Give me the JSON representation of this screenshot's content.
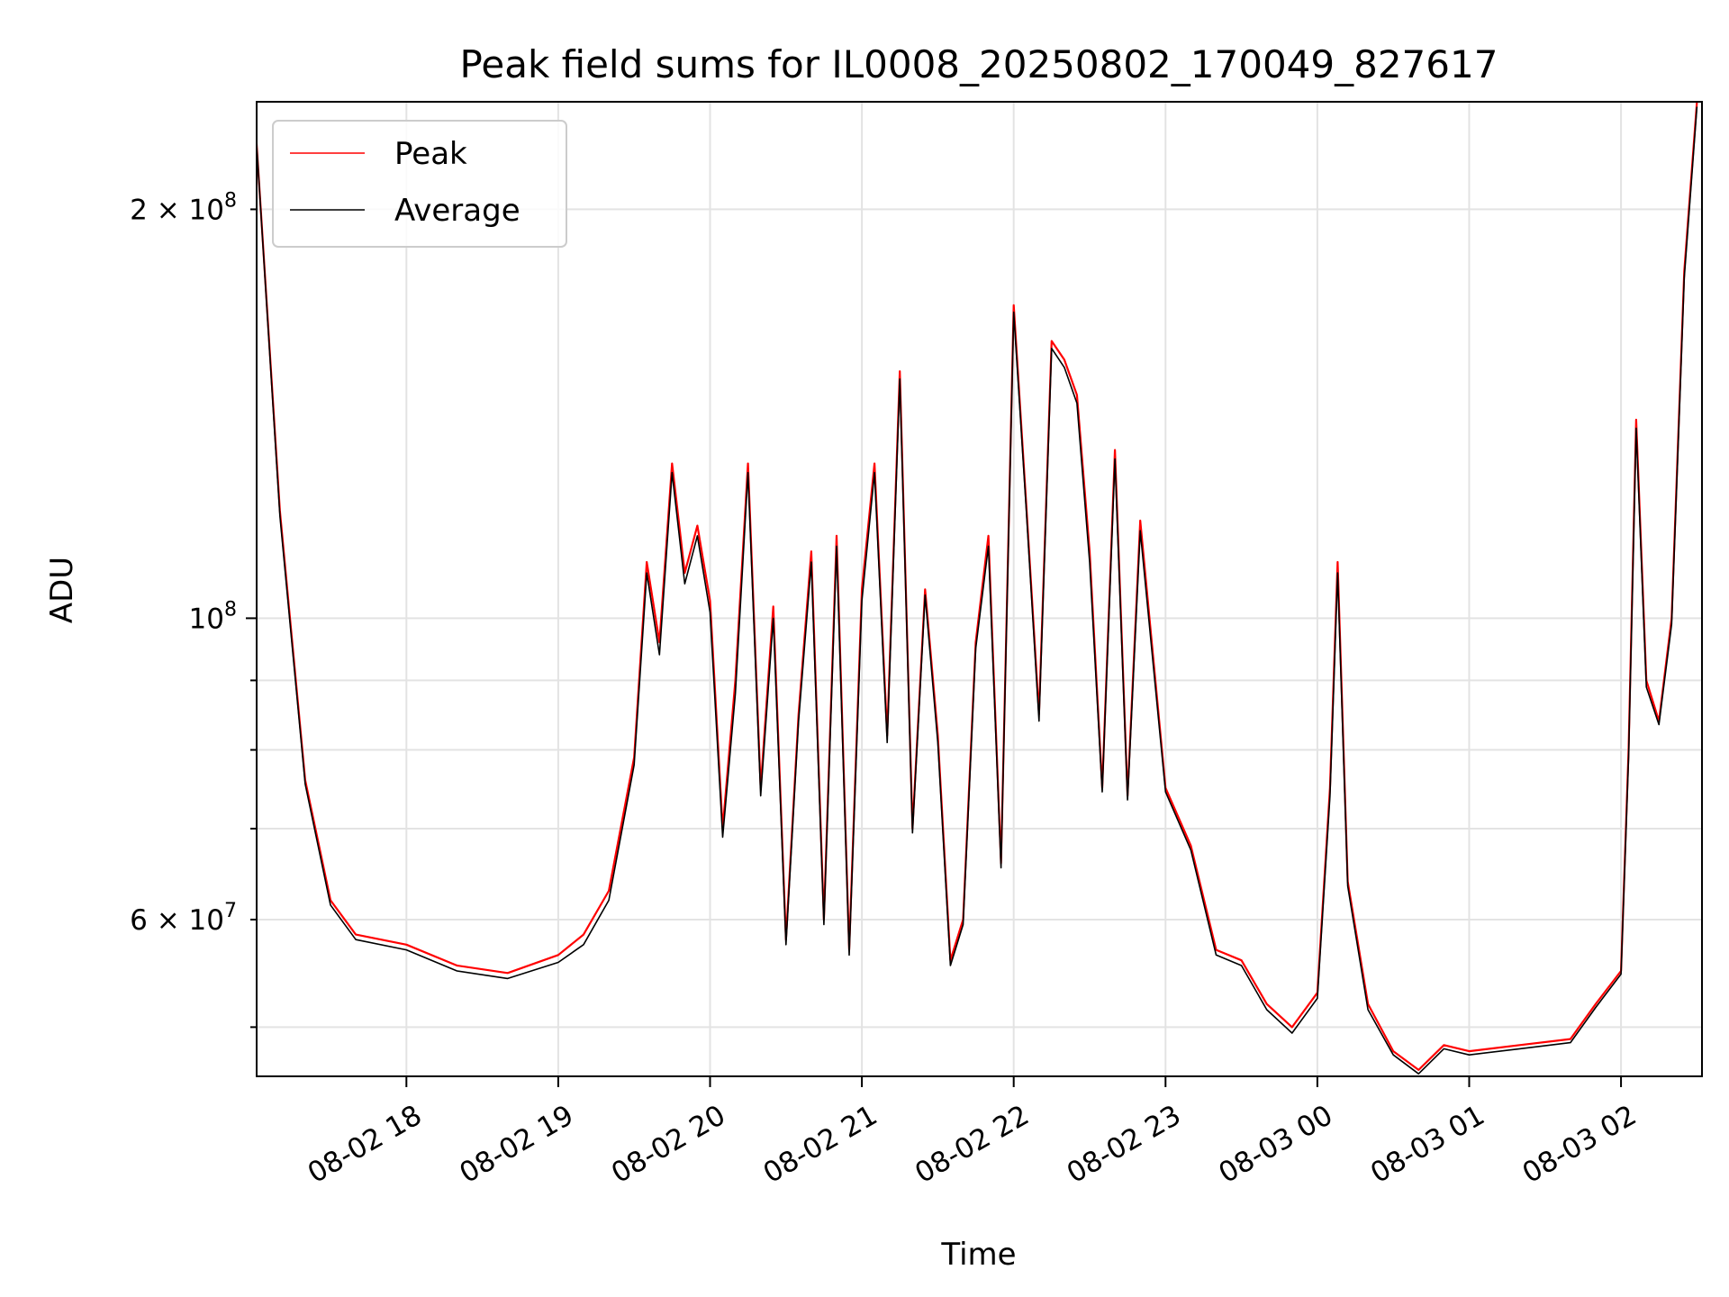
{
  "chart_data": {
    "type": "line",
    "title": "Peak field sums for IL0008_20250802_170049_827617",
    "xlabel": "Time",
    "ylabel": "ADU",
    "y_scale": "log",
    "ylim": [
      46000000,
      240000000
    ],
    "xlim": [
      "2025-08-02 17:00:49",
      "2025-08-03 02:32:00"
    ],
    "grid": true,
    "legend_position": "upper-left",
    "x_ticks": [
      {
        "label": "08-02 18",
        "time": "2025-08-02 18:00"
      },
      {
        "label": "08-02 19",
        "time": "2025-08-02 19:00"
      },
      {
        "label": "08-02 20",
        "time": "2025-08-02 20:00"
      },
      {
        "label": "08-02 21",
        "time": "2025-08-02 21:00"
      },
      {
        "label": "08-02 22",
        "time": "2025-08-02 22:00"
      },
      {
        "label": "08-02 23",
        "time": "2025-08-02 23:00"
      },
      {
        "label": "08-03 00",
        "time": "2025-08-03 00:00"
      },
      {
        "label": "08-03 01",
        "time": "2025-08-03 01:00"
      },
      {
        "label": "08-03 02",
        "time": "2025-08-03 02:00"
      }
    ],
    "y_major_ticks": [
      {
        "value": 100000000,
        "mantissa": "",
        "base": "10",
        "exp": "8"
      }
    ],
    "y_minor_labeled_ticks": [
      {
        "value": 200000000,
        "mantissa": "2 × ",
        "base": "10",
        "exp": "8"
      },
      {
        "value": 60000000,
        "mantissa": "6 × ",
        "base": "10",
        "exp": "7"
      }
    ],
    "y_minor_unlabeled_ticks": [
      50000000,
      70000000,
      80000000,
      90000000
    ],
    "series": [
      {
        "name": "Peak",
        "color": "#ff0000",
        "x": [
          "2025-08-02 17:00",
          "2025-08-02 17:10",
          "2025-08-02 17:20",
          "2025-08-02 17:30",
          "2025-08-02 17:40",
          "2025-08-02 18:00",
          "2025-08-02 18:20",
          "2025-08-02 18:40",
          "2025-08-02 19:00",
          "2025-08-02 19:10",
          "2025-08-02 19:20",
          "2025-08-02 19:30",
          "2025-08-02 19:35",
          "2025-08-02 19:40",
          "2025-08-02 19:45",
          "2025-08-02 19:50",
          "2025-08-02 19:55",
          "2025-08-02 20:00",
          "2025-08-02 20:05",
          "2025-08-02 20:10",
          "2025-08-02 20:15",
          "2025-08-02 20:20",
          "2025-08-02 20:25",
          "2025-08-02 20:30",
          "2025-08-02 20:35",
          "2025-08-02 20:40",
          "2025-08-02 20:45",
          "2025-08-02 20:50",
          "2025-08-02 20:55",
          "2025-08-02 21:00",
          "2025-08-02 21:05",
          "2025-08-02 21:10",
          "2025-08-02 21:15",
          "2025-08-02 21:20",
          "2025-08-02 21:25",
          "2025-08-02 21:30",
          "2025-08-02 21:35",
          "2025-08-02 21:40",
          "2025-08-02 21:45",
          "2025-08-02 21:50",
          "2025-08-02 21:55",
          "2025-08-02 22:00",
          "2025-08-02 22:05",
          "2025-08-02 22:10",
          "2025-08-02 22:15",
          "2025-08-02 22:20",
          "2025-08-02 22:25",
          "2025-08-02 22:30",
          "2025-08-02 22:35",
          "2025-08-02 22:40",
          "2025-08-02 22:45",
          "2025-08-02 22:50",
          "2025-08-02 23:00",
          "2025-08-02 23:10",
          "2025-08-02 23:20",
          "2025-08-02 23:30",
          "2025-08-02 23:40",
          "2025-08-02 23:50",
          "2025-08-03 00:00",
          "2025-08-03 00:05",
          "2025-08-03 00:08",
          "2025-08-03 00:12",
          "2025-08-03 00:20",
          "2025-08-03 00:30",
          "2025-08-03 00:40",
          "2025-08-03 00:50",
          "2025-08-03 01:00",
          "2025-08-03 01:20",
          "2025-08-03 01:40",
          "2025-08-03 01:50",
          "2025-08-03 02:00",
          "2025-08-03 02:03",
          "2025-08-03 02:06",
          "2025-08-03 02:10",
          "2025-08-03 02:15",
          "2025-08-03 02:20",
          "2025-08-03 02:25",
          "2025-08-03 02:30"
        ],
        "values": [
          236000000,
          120000000,
          76000000,
          62000000,
          58500000,
          57500000,
          55500000,
          54800000,
          56500000,
          58500000,
          63000000,
          79000000,
          110000000,
          96000000,
          130000000,
          108000000,
          117000000,
          103000000,
          70000000,
          90000000,
          130000000,
          75000000,
          102000000,
          58000000,
          85000000,
          112000000,
          60000000,
          115000000,
          57000000,
          105000000,
          130000000,
          82000000,
          152000000,
          70000000,
          105000000,
          82000000,
          56000000,
          60000000,
          96000000,
          115000000,
          66000000,
          170000000,
          121000000,
          85000000,
          160000000,
          155000000,
          146000000,
          112000000,
          75000000,
          133000000,
          74000000,
          118000000,
          75000000,
          68000000,
          57000000,
          56000000,
          52000000,
          50000000,
          53000000,
          75000000,
          110000000,
          64000000,
          52000000,
          48000000,
          46500000,
          48500000,
          48000000,
          48500000,
          49000000,
          52000000,
          55000000,
          80000000,
          140000000,
          90000000,
          84000000,
          100000000,
          180000000,
          240000000
        ]
      },
      {
        "name": "Average",
        "color": "#000000",
        "x": [
          "2025-08-02 17:00",
          "2025-08-02 17:10",
          "2025-08-02 17:20",
          "2025-08-02 17:30",
          "2025-08-02 17:40",
          "2025-08-02 18:00",
          "2025-08-02 18:20",
          "2025-08-02 18:40",
          "2025-08-02 19:00",
          "2025-08-02 19:10",
          "2025-08-02 19:20",
          "2025-08-02 19:30",
          "2025-08-02 19:35",
          "2025-08-02 19:40",
          "2025-08-02 19:45",
          "2025-08-02 19:50",
          "2025-08-02 19:55",
          "2025-08-02 20:00",
          "2025-08-02 20:05",
          "2025-08-02 20:10",
          "2025-08-02 20:15",
          "2025-08-02 20:20",
          "2025-08-02 20:25",
          "2025-08-02 20:30",
          "2025-08-02 20:35",
          "2025-08-02 20:40",
          "2025-08-02 20:45",
          "2025-08-02 20:50",
          "2025-08-02 20:55",
          "2025-08-02 21:00",
          "2025-08-02 21:05",
          "2025-08-02 21:10",
          "2025-08-02 21:15",
          "2025-08-02 21:20",
          "2025-08-02 21:25",
          "2025-08-02 21:30",
          "2025-08-02 21:35",
          "2025-08-02 21:40",
          "2025-08-02 21:45",
          "2025-08-02 21:50",
          "2025-08-02 21:55",
          "2025-08-02 22:00",
          "2025-08-02 22:05",
          "2025-08-02 22:10",
          "2025-08-02 22:15",
          "2025-08-02 22:20",
          "2025-08-02 22:25",
          "2025-08-02 22:30",
          "2025-08-02 22:35",
          "2025-08-02 22:40",
          "2025-08-02 22:45",
          "2025-08-02 22:50",
          "2025-08-02 23:00",
          "2025-08-02 23:10",
          "2025-08-02 23:20",
          "2025-08-02 23:30",
          "2025-08-02 23:40",
          "2025-08-02 23:50",
          "2025-08-03 00:00",
          "2025-08-03 00:05",
          "2025-08-03 00:08",
          "2025-08-03 00:12",
          "2025-08-03 00:20",
          "2025-08-03 00:30",
          "2025-08-03 00:40",
          "2025-08-03 00:50",
          "2025-08-03 01:00",
          "2025-08-03 01:20",
          "2025-08-03 01:40",
          "2025-08-03 01:50",
          "2025-08-03 02:00",
          "2025-08-03 02:03",
          "2025-08-03 02:06",
          "2025-08-03 02:10",
          "2025-08-03 02:15",
          "2025-08-03 02:20",
          "2025-08-03 02:25",
          "2025-08-03 02:30"
        ],
        "values": [
          236000000,
          119000000,
          75500000,
          61500000,
          58000000,
          57000000,
          55000000,
          54300000,
          55800000,
          57500000,
          62000000,
          78000000,
          108000000,
          94000000,
          128000000,
          106000000,
          115000000,
          101000000,
          69000000,
          88000000,
          128000000,
          74000000,
          100000000,
          57500000,
          84000000,
          110000000,
          59500000,
          113000000,
          56500000,
          103000000,
          128000000,
          81000000,
          150000000,
          69500000,
          104000000,
          81000000,
          55500000,
          59500000,
          95000000,
          113000000,
          65500000,
          168000000,
          120000000,
          84000000,
          158000000,
          153000000,
          144000000,
          110000000,
          74500000,
          131000000,
          73500000,
          116000000,
          74500000,
          67500000,
          56500000,
          55500000,
          51500000,
          49500000,
          52500000,
          74000000,
          108000000,
          63500000,
          51500000,
          47700000,
          46200000,
          48200000,
          47700000,
          48200000,
          48700000,
          51700000,
          54700000,
          79000000,
          138000000,
          89000000,
          83500000,
          99000000,
          178000000,
          238000000
        ]
      }
    ]
  }
}
